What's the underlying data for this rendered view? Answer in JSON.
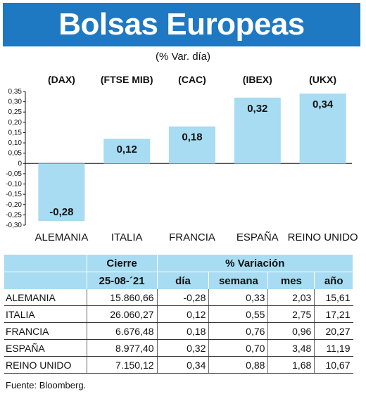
{
  "title": "Bolsas Europeas",
  "subtitle": "(% Var. día)",
  "chart_data": {
    "type": "bar",
    "categories": [
      "ALEMANIA",
      "ITALIA",
      "FRANCIA",
      "ESPAÑA",
      "REINO UNIDO"
    ],
    "index_labels": [
      "(DAX)",
      "(FTSE MIB)",
      "(CAC)",
      "(IBEX)",
      "(UKX)"
    ],
    "values": [
      -0.28,
      0.12,
      0.18,
      0.32,
      0.34
    ],
    "value_labels": [
      "-0,28",
      "0,12",
      "0,18",
      "0,32",
      "0,34"
    ],
    "yticks": [
      "0,35",
      "0,30",
      "0,25",
      "0,20",
      "0,15",
      "0,10",
      "0,05",
      "0",
      "-0,05",
      "-0,10",
      "-0,15",
      "-0,20",
      "-0,25",
      "-0,30"
    ],
    "ylim": [
      -0.3,
      0.35
    ],
    "grid": false,
    "bar_color": "#a7dcf2"
  },
  "table": {
    "group_headers": [
      "Cierre",
      "% Variación"
    ],
    "sub_headers": [
      "25-08-´21",
      "día",
      "semana",
      "mes",
      "año"
    ],
    "rows": [
      [
        "ALEMANIA",
        "15.860,66",
        "-0,28",
        "0,33",
        "2,03",
        "15,61"
      ],
      [
        "ITALIA",
        "26.060,27",
        "0,12",
        "0,55",
        "2,75",
        "17,21"
      ],
      [
        "FRANCIA",
        "6.676,48",
        "0,18",
        "0,76",
        "0,96",
        "20,27"
      ],
      [
        "ESPAÑA",
        "8.977,40",
        "0,32",
        "0,70",
        "3,48",
        "11,19"
      ],
      [
        "REINO UNIDO",
        "7.150,12",
        "0,34",
        "0,88",
        "1,68",
        "10,67"
      ]
    ]
  },
  "source": "Fuente: Bloomberg."
}
